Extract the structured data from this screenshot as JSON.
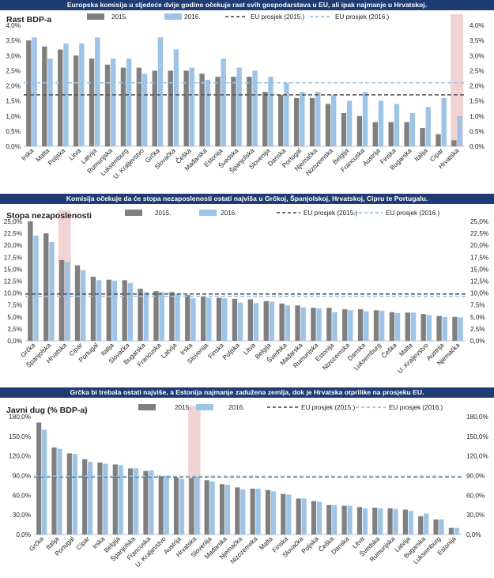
{
  "chart_data": [
    {
      "type": "bar",
      "banner": "Europska komisija u sljedeće dvije godine očekuje rast svih gospodarstava u EU, ali ipak najmanje u Hrvatskoj.",
      "title": "Rast BDP-a",
      "ylim": [
        0,
        4
      ],
      "yticks": [
        "0,0%",
        "0,5%",
        "1,0%",
        "1,5%",
        "2,0%",
        "2,5%",
        "3,0%",
        "3,5%",
        "4,0%"
      ],
      "grid": false,
      "legend_position": "top",
      "highlight": "Hrvatska",
      "categories": [
        "Irska",
        "Malta",
        "Poljska",
        "Litva",
        "Latvija",
        "Rumunjska",
        "Luksemburg",
        "U. Kraljevstvo",
        "Grčka",
        "Slovačka",
        "Češka",
        "Mađarska",
        "Estonija",
        "Švedska",
        "Španjolska",
        "Slovenija",
        "Danska",
        "Portugal",
        "Njemačka",
        "Nizozemska",
        "Belgija",
        "Francuska",
        "Austrija",
        "Finska",
        "Bugarska",
        "Italija",
        "Cipar",
        "Hrvatska"
      ],
      "series": [
        {
          "name": "2015.",
          "values": [
            3.5,
            3.3,
            3.2,
            3.0,
            2.9,
            2.7,
            2.6,
            2.6,
            2.5,
            2.5,
            2.5,
            2.4,
            2.3,
            2.3,
            2.3,
            1.8,
            1.7,
            1.6,
            1.6,
            1.4,
            1.1,
            1.0,
            0.8,
            0.8,
            0.8,
            0.6,
            0.4,
            0.2
          ]
        },
        {
          "name": "2016.",
          "values": [
            3.6,
            2.9,
            3.4,
            3.4,
            3.6,
            2.9,
            2.9,
            2.4,
            3.6,
            3.2,
            2.6,
            2.2,
            2.9,
            2.6,
            2.5,
            2.3,
            2.1,
            1.8,
            1.8,
            1.7,
            1.5,
            1.8,
            1.5,
            1.4,
            1.1,
            1.3,
            1.6,
            1.0
          ]
        }
      ],
      "reference_lines": [
        {
          "name": "EU prosjek (2015.)",
          "value": 1.7
        },
        {
          "name": "EU prosjek (2016.)",
          "value": 2.1
        }
      ]
    },
    {
      "type": "bar",
      "banner": "Komisija očekuje da će stopa nezaposlenosti ostati najviša u Grčkoj, Španjolskoj, Hrvatskoj, Cipru te Portugalu.",
      "title": "Stopa nezaposlenosti",
      "ylim": [
        0,
        25
      ],
      "yticks": [
        "0,0%",
        "2,5%",
        "5,0%",
        "7,5%",
        "10,0%",
        "12,5%",
        "15,0%",
        "17,5%",
        "20,0%",
        "22,5%",
        "25,0%"
      ],
      "grid": false,
      "legend_position": "top",
      "highlight": "Hrvatska",
      "categories": [
        "Grčka",
        "Španjolska",
        "Hrvatska",
        "Cipar",
        "Portugal",
        "Italija",
        "Slovačka",
        "Bugarska",
        "Francuska",
        "Latvija",
        "Irska",
        "Slovenija",
        "Finska",
        "Poljska",
        "Litva",
        "Belgija",
        "Švedska",
        "Mađarska",
        "Rumunjska",
        "Estonija",
        "Nizozemska",
        "Danska",
        "Luksemburg",
        "Češka",
        "Malta",
        "U. Kraljevstvo",
        "Austrija",
        "Njemačka"
      ],
      "series": [
        {
          "name": "2015.",
          "values": [
            25.0,
            22.5,
            16.9,
            15.8,
            13.4,
            12.8,
            12.7,
            10.9,
            10.4,
            10.2,
            9.6,
            9.3,
            9.0,
            8.8,
            8.7,
            8.3,
            7.8,
            7.4,
            6.9,
            6.9,
            6.6,
            6.6,
            6.4,
            6.0,
            5.9,
            5.6,
            5.2,
            5.0
          ]
        },
        {
          "name": "2016.",
          "values": [
            22.0,
            20.7,
            16.5,
            14.8,
            12.7,
            12.6,
            12.1,
            10.2,
            10.2,
            9.8,
            8.9,
            9.0,
            8.9,
            8.0,
            7.9,
            8.2,
            7.4,
            7.0,
            6.8,
            6.0,
            6.4,
            6.2,
            6.3,
            5.8,
            5.9,
            5.4,
            5.0,
            4.9
          ]
        }
      ],
      "reference_lines": [
        {
          "name": "EU prosjek (2015.)",
          "value": 9.8
        },
        {
          "name": "EU prosjek (2016.)",
          "value": 9.3
        }
      ]
    },
    {
      "type": "bar",
      "banner": "Grčka bi trebala ostati najviše, a Estonija najmanje zadužena zemlja, dok je Hrvatska otprilike na prosjeku EU.",
      "title": "Javni dug (% BDP-a)",
      "ylim": [
        0,
        180
      ],
      "yticks": [
        "0,0%",
        "30,0%",
        "60,0%",
        "90,0%",
        "120,0%",
        "150,0%",
        "180,0%"
      ],
      "grid": false,
      "legend_position": "top",
      "highlight": "Hrvatska",
      "categories": [
        "Grčka",
        "Italija",
        "Portugal",
        "Cipar",
        "Irska",
        "Belgija",
        "Španjolska",
        "Francuska",
        "U. Kraljevstvo",
        "Austrija",
        "Hrvatska",
        "Slovenija",
        "Mađarska",
        "Njemačka",
        "Nizozemska",
        "Malta",
        "Finska",
        "Slovačka",
        "Poljska",
        "Češka",
        "Danska",
        "Litva",
        "Švedska",
        "Rumunjska",
        "Latvija",
        "Bugarska",
        "Luksemburg",
        "Estonija"
      ],
      "series": [
        {
          "name": "2015.",
          "values": [
            171,
            133,
            124,
            115,
            110,
            107,
            101,
            97,
            90,
            87,
            86,
            83,
            77,
            72,
            70,
            68,
            62,
            55,
            51,
            45,
            44,
            42,
            41,
            40,
            38,
            28,
            23,
            10
          ]
        },
        {
          "name": "2016.",
          "values": [
            160,
            131,
            123,
            111,
            108,
            106,
            101,
            98,
            90,
            85,
            88,
            81,
            76,
            69,
            70,
            66,
            61,
            55,
            50,
            45,
            44,
            40,
            40,
            39,
            36,
            32,
            23,
            10
          ]
        }
      ],
      "reference_lines": [
        {
          "name": "EU prosjek (2015.)",
          "value": 88
        },
        {
          "name": "EU prosjek (2016.)",
          "value": 89
        }
      ]
    }
  ],
  "colors": {
    "banner_bg": "#1f3b73",
    "series_2015": "#7f7f7f",
    "series_2016": "#9dc3e6",
    "ref_2015": "#595959",
    "ref_2016": "#9dc3e6",
    "highlight": "#f2d3d3",
    "text": "#222222"
  }
}
